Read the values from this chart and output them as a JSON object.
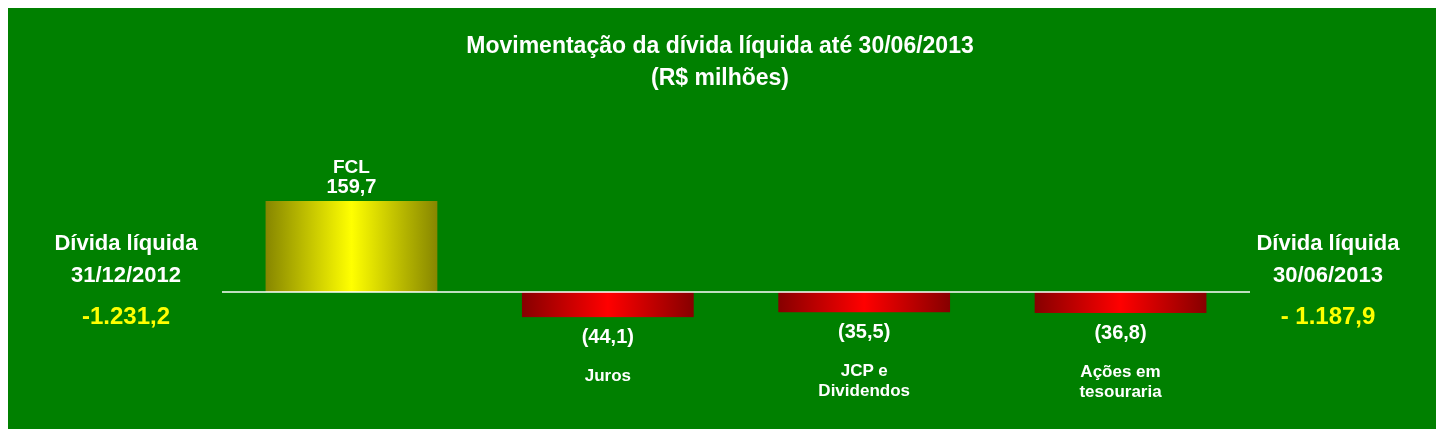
{
  "chart_data": {
    "type": "bar",
    "title": "Movimentação da dívida líquida até 30/06/2013",
    "subtitle": "(R$ milhões)",
    "categories": [
      "FCL",
      "Juros",
      "JCP e Dividendos",
      "Ações em tesouraria"
    ],
    "values": [
      159.7,
      -44.1,
      -35.5,
      -36.8
    ],
    "value_labels": [
      "159,7",
      "(44,1)",
      "(35,5)",
      "(36,8)"
    ],
    "colors": [
      "#ffff00",
      "#ff0000",
      "#ff0000",
      "#ff0000"
    ],
    "annotations": [
      "Dívida líquida 31/12/2012",
      "-1.231,2",
      "Dívida líquida 30/06/2013",
      "- 1.187,9"
    ]
  }
}
